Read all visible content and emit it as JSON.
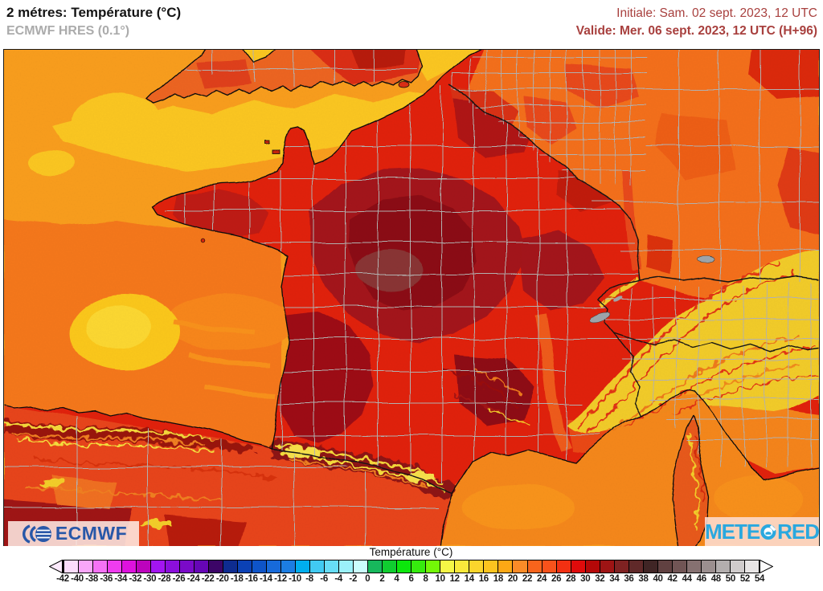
{
  "header": {
    "title": "2 métres: Température (°C)",
    "subtitle": "ECMWF HRES (0.1°)",
    "initiale": "Initiale: Sam. 02 sept. 2023, 12 UTC",
    "valide": "Valide: Mer. 06 sept. 2023, 12 UTC (H+96)",
    "accent_color": "#A8403E"
  },
  "map": {
    "type": "weather-temperature-forecast-map",
    "region": "France and surrounding area",
    "logos": {
      "ecmwf": "ECMWF",
      "meteored": "METEORED",
      "meteored_left": "METE",
      "meteored_right": "RED",
      "ecmwf_blue": "#2857A8",
      "meteored_blue": "#29A8DF"
    },
    "palette": {
      "sea_atlantic": "#F99E1E",
      "sea_channel_yellow": "#FBC722",
      "sea_biscay": "#F5781C",
      "sea_mediterranean": "#F5881E",
      "land_orange": "#F4701D",
      "land_red": "#E1200F",
      "land_dark_red": "#A4161A",
      "land_darkest_red": "#8C1115",
      "mountains_yellow": "#F2CC2B",
      "admin_border_gray": "#B5B3B1",
      "country_border_black": "#141414"
    }
  },
  "legend": {
    "title": "Température (°C)",
    "ticks": [
      "-42",
      "-40",
      "-38",
      "-36",
      "-34",
      "-32",
      "-30",
      "-28",
      "-26",
      "-24",
      "-22",
      "-20",
      "-18",
      "-16",
      "-14",
      "-12",
      "-10",
      "-8",
      "-6",
      "-4",
      "-2",
      "0",
      "2",
      "4",
      "6",
      "8",
      "10",
      "12",
      "14",
      "16",
      "18",
      "20",
      "22",
      "24",
      "26",
      "28",
      "30",
      "32",
      "34",
      "36",
      "38",
      "40",
      "42",
      "44",
      "46",
      "48",
      "50",
      "52",
      "54"
    ],
    "cell_colors": [
      "#FBDCFB",
      "#F9A6F9",
      "#F672F6",
      "#EF3CEF",
      "#DE12DE",
      "#BC03BC",
      "#A315F0",
      "#8B0FDC",
      "#7A0AC8",
      "#6606B6",
      "#3C0567",
      "#0E2C90",
      "#0B41B5",
      "#0E54C8",
      "#176ADA",
      "#1C7DE2",
      "#00AEEF",
      "#41CAF2",
      "#67DDF7",
      "#9BF1FA",
      "#CBFDFD",
      "#17B85C",
      "#10CD30",
      "#0CE70C",
      "#36EB0E",
      "#73F807",
      "#F6F646",
      "#FAE93B",
      "#FBD52C",
      "#FCC41F",
      "#FCA815",
      "#FA8B28",
      "#F8641C",
      "#F8521B",
      "#F23012",
      "#DF0B0B",
      "#B50808",
      "#9E1414",
      "#7F2222",
      "#602929",
      "#402525",
      "#614141",
      "#715555",
      "#867171",
      "#9B8F8F",
      "#B3AEAE",
      "#D0CCCC",
      "#E8E5E5"
    ],
    "left_arrow_color": "#FDEBFD",
    "right_arrow_color": "#FCFBFB"
  }
}
